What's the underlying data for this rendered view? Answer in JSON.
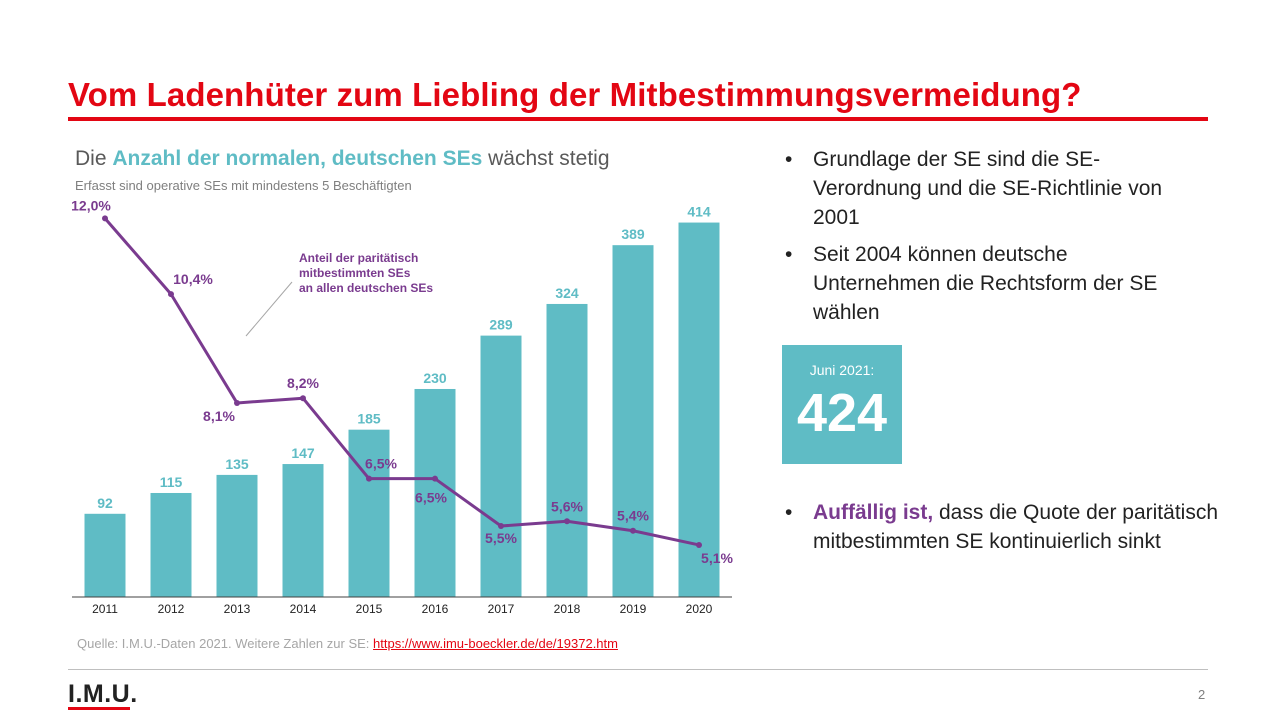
{
  "slide": {
    "title": "Vom Ladenhüter zum Liebling der Mitbestimmungsvermeidung?",
    "page_number": "2"
  },
  "chart_heading": {
    "prefix": "Die ",
    "highlight": "Anzahl der normalen, deutschen SEs",
    "suffix": " wächst stetig",
    "subtitle": "Erfasst sind operative SEs mit mindestens 5 Beschäftigten"
  },
  "source": {
    "text": "Quelle: I.M.U.-Daten 2021. Weitere Zahlen zur SE: ",
    "link": "https://www.imu-boeckler.de/de/19372.htm"
  },
  "bullets": [
    {
      "text": "Grundlage der SE sind die SE-Verordnung und die SE-Richtlinie von 2001"
    },
    {
      "text": "Seit 2004 können deutsche Unternehmen die Rechtsform der SE wählen"
    },
    {
      "highlight": "Auffällig ist,",
      "text": " dass die Quote der paritätisch mitbestimmten SE kontinuierlich sinkt"
    }
  ],
  "highlight_box": {
    "date": "Juni 2021:",
    "value": "424"
  },
  "logo": "I.M.U.",
  "colors": {
    "bar": "#5fbcc5",
    "line": "#7a3b8f",
    "title_red": "#e30613",
    "text": "#222222"
  },
  "chart_data": {
    "type": "bar",
    "categories": [
      "2011",
      "2012",
      "2013",
      "2014",
      "2015",
      "2016",
      "2017",
      "2018",
      "2019",
      "2020"
    ],
    "series": [
      {
        "type": "bar",
        "values": [
          92,
          115,
          135,
          147,
          185,
          230,
          289,
          324,
          389,
          414
        ],
        "labels": [
          "92",
          "115",
          "135",
          "147",
          "185",
          "230",
          "289",
          "324",
          "389",
          "414"
        ]
      },
      {
        "type": "line",
        "name": "Anteil der paritätisch mitbestimmten SEs an allen deutschen SEs",
        "name_lines": [
          "Anteil der paritätisch",
          "mitbestimmten SEs",
          "an allen deutschen SEs"
        ],
        "values": [
          12.0,
          10.4,
          8.1,
          8.2,
          6.5,
          6.5,
          5.5,
          5.6,
          5.4,
          5.1
        ],
        "labels": [
          "12,0%",
          "10,4%",
          "8,1%",
          "8,2%",
          "6,5%",
          "6,5%",
          "5,5%",
          "5,6%",
          "5,4%",
          "5,1%"
        ]
      }
    ],
    "bar_ylim": [
      0,
      450
    ],
    "line_ylim": [
      4,
      12.6
    ]
  }
}
